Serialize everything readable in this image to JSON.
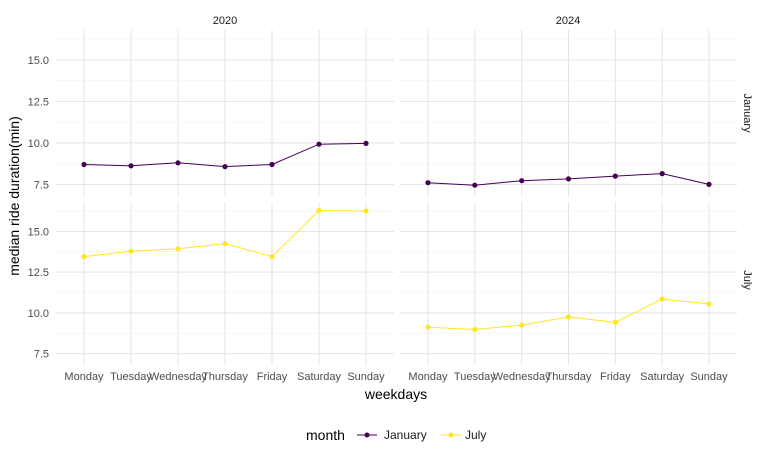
{
  "chart_data": {
    "type": "line",
    "xlabel": "weekdays",
    "ylabel": "median ride duration(min)",
    "categories": [
      "Monday",
      "Tuesday",
      "Wednesday",
      "Thursday",
      "Friday",
      "Saturday",
      "Sunday"
    ],
    "facet_columns": [
      "2020",
      "2024"
    ],
    "facet_rows": [
      "January",
      "July"
    ],
    "y_ticks": [
      7.5,
      10.0,
      12.5,
      15.0
    ],
    "y_tick_labels": [
      "7.5",
      "10.0",
      "12.5",
      "15.0"
    ],
    "ylim": [
      6.8,
      16.8
    ],
    "grid": true,
    "legend": {
      "title": "month",
      "position": "bottom",
      "entries": [
        {
          "name": "January",
          "color": "#440154"
        },
        {
          "name": "July",
          "color": "#FDE725"
        }
      ]
    },
    "panels": [
      {
        "year": "2020",
        "month": "January",
        "color": "#440154",
        "values": [
          8.7,
          8.62,
          8.8,
          8.57,
          8.7,
          9.92,
          9.97
        ]
      },
      {
        "year": "2024",
        "month": "January",
        "color": "#440154",
        "values": [
          7.6,
          7.45,
          7.72,
          7.83,
          8.0,
          8.15,
          7.5
        ]
      },
      {
        "year": "2020",
        "month": "July",
        "color": "#FDE725",
        "values": [
          13.45,
          13.78,
          13.93,
          14.25,
          13.45,
          16.28,
          16.25
        ]
      },
      {
        "year": "2024",
        "month": "July",
        "color": "#FDE725",
        "values": [
          9.12,
          8.98,
          9.25,
          9.75,
          9.42,
          10.85,
          10.55
        ]
      }
    ]
  }
}
